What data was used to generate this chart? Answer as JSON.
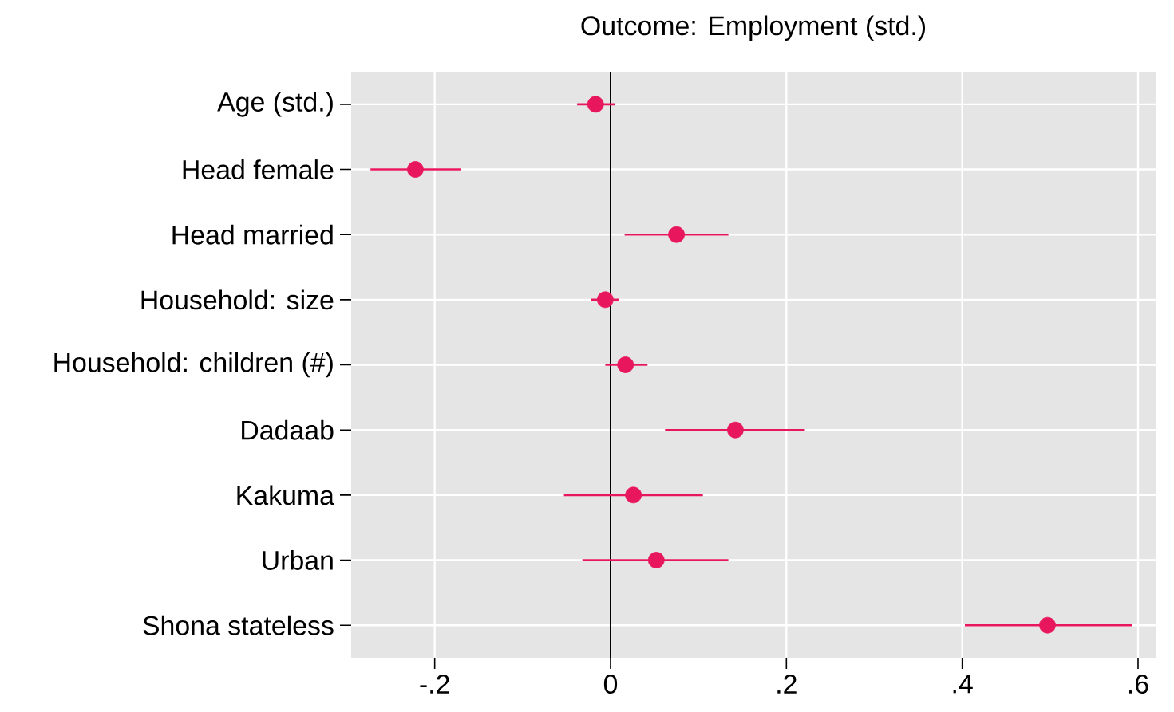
{
  "chart_data": {
    "type": "scatter",
    "orientation": "horizontal",
    "title": "Outcome: Employment (std.)",
    "categories": [
      "Age (std.)",
      "Head female",
      "Head married",
      "Household: size",
      "Household: children (#)",
      "Dadaab",
      "Kakuma",
      "Urban",
      "Shona stateless"
    ],
    "values": [
      -0.017,
      -0.222,
      0.075,
      -0.006,
      0.017,
      0.142,
      0.026,
      0.052,
      0.497
    ],
    "errors": [
      [
        -0.038,
        0.005
      ],
      [
        -0.273,
        -0.17
      ],
      [
        0.016,
        0.134
      ],
      [
        -0.022,
        0.01
      ],
      [
        -0.006,
        0.042
      ],
      [
        0.062,
        0.221
      ],
      [
        -0.053,
        0.105
      ],
      [
        -0.032,
        0.134
      ],
      [
        0.403,
        0.593
      ]
    ],
    "color": "#e8175d",
    "marker": "circle",
    "xlim": [
      -0.295,
      0.62
    ],
    "xticks": [
      {
        "value": -0.2,
        "label": "-.2"
      },
      0,
      {
        "value": 0.2,
        "label": ".2"
      },
      {
        "value": 0.4,
        "label": ".4"
      },
      {
        "value": 0.6,
        "label": ".6"
      }
    ],
    "ref_lines": [
      {
        "axis": "x",
        "value": 0,
        "color": "#000000"
      }
    ],
    "grid": true
  }
}
